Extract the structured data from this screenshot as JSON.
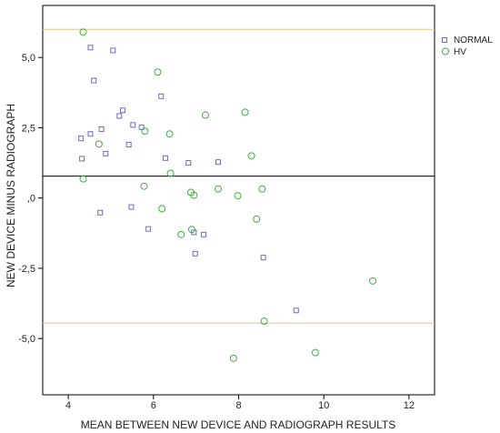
{
  "chart_data": {
    "type": "scatter",
    "title": "",
    "xlabel": "MEAN BETWEEN NEW DEVICE AND RADIOGRAPH RESULTS",
    "ylabel": "NEW DEVICE MINUS RADIOGRAPH",
    "xlim": [
      3.4,
      12.6
    ],
    "ylim": [
      -7.0,
      6.85
    ],
    "x_ticks": [
      {
        "value": 4,
        "label": "4"
      },
      {
        "value": 6,
        "label": "6"
      },
      {
        "value": 8,
        "label": "8"
      },
      {
        "value": 10,
        "label": "10"
      },
      {
        "value": 12,
        "label": "12"
      }
    ],
    "y_ticks": [
      {
        "value": 5,
        "label": "5,0"
      },
      {
        "value": 2.5,
        "label": "2,5"
      },
      {
        "value": 0,
        "label": ",0"
      },
      {
        "value": -2.5,
        "label": "-2,5"
      },
      {
        "value": -5,
        "label": "-5,0"
      }
    ],
    "reference_lines": [
      {
        "kind": "upper-limit",
        "y": 6.0,
        "color": "#f0c080"
      },
      {
        "kind": "mean",
        "y": 0.78,
        "color": "#000000"
      },
      {
        "kind": "lower-limit",
        "y": -4.45,
        "color": "#f0c080"
      }
    ],
    "legend_position": "top-right",
    "grid": false,
    "series": [
      {
        "name": "NORMAL",
        "marker": "square",
        "color": "#6b6bc4",
        "points": [
          {
            "x": 4.52,
            "y": 5.35
          },
          {
            "x": 5.05,
            "y": 5.25
          },
          {
            "x": 4.6,
            "y": 4.18
          },
          {
            "x": 6.18,
            "y": 3.62
          },
          {
            "x": 5.28,
            "y": 3.12
          },
          {
            "x": 5.2,
            "y": 2.92
          },
          {
            "x": 5.52,
            "y": 2.6
          },
          {
            "x": 5.72,
            "y": 2.52
          },
          {
            "x": 4.78,
            "y": 2.45
          },
          {
            "x": 4.52,
            "y": 2.28
          },
          {
            "x": 4.3,
            "y": 2.12
          },
          {
            "x": 5.42,
            "y": 1.9
          },
          {
            "x": 4.88,
            "y": 1.58
          },
          {
            "x": 4.32,
            "y": 1.4
          },
          {
            "x": 6.28,
            "y": 1.42
          },
          {
            "x": 6.82,
            "y": 1.25
          },
          {
            "x": 7.52,
            "y": 1.28
          },
          {
            "x": 5.48,
            "y": -0.32
          },
          {
            "x": 4.75,
            "y": -0.52
          },
          {
            "x": 5.88,
            "y": -1.1
          },
          {
            "x": 6.95,
            "y": -1.22
          },
          {
            "x": 7.18,
            "y": -1.3
          },
          {
            "x": 6.98,
            "y": -1.98
          },
          {
            "x": 8.58,
            "y": -2.12
          },
          {
            "x": 9.35,
            "y": -4.0
          }
        ]
      },
      {
        "name": "HV",
        "marker": "circle",
        "color": "#3fae3f",
        "points": [
          {
            "x": 4.35,
            "y": 5.9
          },
          {
            "x": 6.1,
            "y": 4.48
          },
          {
            "x": 7.22,
            "y": 2.95
          },
          {
            "x": 8.15,
            "y": 3.05
          },
          {
            "x": 5.8,
            "y": 2.38
          },
          {
            "x": 6.38,
            "y": 2.28
          },
          {
            "x": 4.72,
            "y": 1.92
          },
          {
            "x": 8.3,
            "y": 1.5
          },
          {
            "x": 6.4,
            "y": 0.88
          },
          {
            "x": 4.35,
            "y": 0.68
          },
          {
            "x": 5.78,
            "y": 0.42
          },
          {
            "x": 7.52,
            "y": 0.32
          },
          {
            "x": 8.55,
            "y": 0.32
          },
          {
            "x": 6.88,
            "y": 0.2
          },
          {
            "x": 6.95,
            "y": 0.1
          },
          {
            "x": 7.98,
            "y": 0.08
          },
          {
            "x": 6.2,
            "y": -0.38
          },
          {
            "x": 8.42,
            "y": -0.75
          },
          {
            "x": 6.9,
            "y": -1.12
          },
          {
            "x": 6.65,
            "y": -1.3
          },
          {
            "x": 11.15,
            "y": -2.95
          },
          {
            "x": 8.6,
            "y": -4.38
          },
          {
            "x": 9.8,
            "y": -5.5
          },
          {
            "x": 7.88,
            "y": -5.7
          }
        ]
      }
    ]
  }
}
